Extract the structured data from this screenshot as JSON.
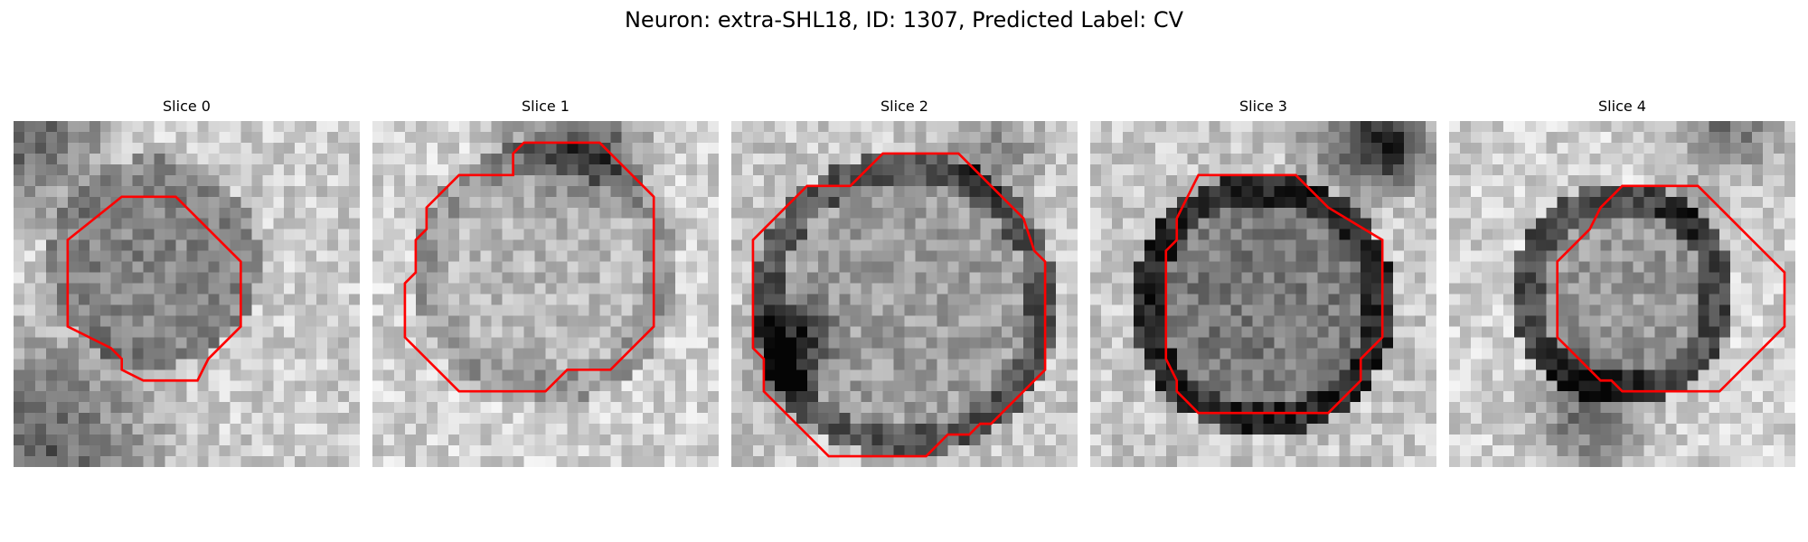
{
  "figure": {
    "title": "Neuron: extra-SHL18, ID: 1307, Predicted Label: CV"
  },
  "panels": [
    {
      "label": "Slice 0",
      "contour_color": "#ff0000"
    },
    {
      "label": "Slice 1",
      "contour_color": "#ff0000"
    },
    {
      "label": "Slice 2",
      "contour_color": "#ff0000"
    },
    {
      "label": "Slice 3",
      "contour_color": "#ff0000"
    },
    {
      "label": "Slice 4",
      "contour_color": "#ff0000"
    }
  ],
  "colormap": "gray"
}
